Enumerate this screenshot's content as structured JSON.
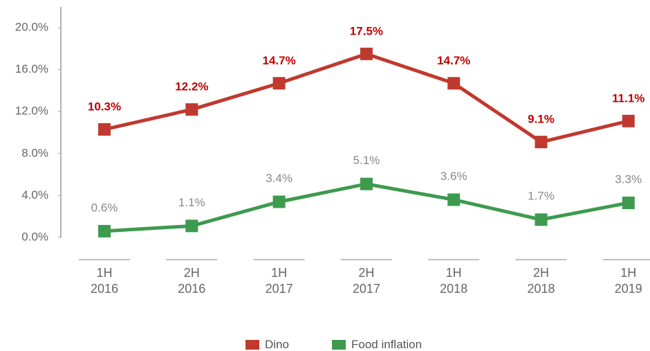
{
  "chart_data": {
    "type": "line",
    "categories": [
      "1H\n2016",
      "2H\n2016",
      "1H\n2017",
      "2H\n2017",
      "1H\n2018",
      "2H\n2018",
      "1H\n2019"
    ],
    "series": [
      {
        "name": "Dino",
        "color": "#c0392f",
        "values": [
          10.3,
          12.2,
          14.7,
          17.5,
          14.7,
          9.1,
          11.1
        ],
        "value_labels": [
          "10.3%",
          "12.2%",
          "14.7%",
          "17.5%",
          "14.7%",
          "9.1%",
          "11.1%"
        ]
      },
      {
        "name": "Food inflation",
        "color": "#3d9a4f",
        "values": [
          0.6,
          1.1,
          3.4,
          5.1,
          3.6,
          1.7,
          3.3
        ],
        "value_labels": [
          "0.6%",
          "1.1%",
          "3.4%",
          "5.1%",
          "3.6%",
          "1.7%",
          "3.3%"
        ]
      }
    ],
    "ylim": [
      0,
      20
    ],
    "yticks": [
      {
        "value": 0,
        "label": "0.0%"
      },
      {
        "value": 4,
        "label": "4.0%"
      },
      {
        "value": 8,
        "label": "8.0%"
      },
      {
        "value": 12,
        "label": "12.0%"
      },
      {
        "value": 16,
        "label": "16.0%"
      },
      {
        "value": 20,
        "label": "20.0%"
      }
    ]
  }
}
